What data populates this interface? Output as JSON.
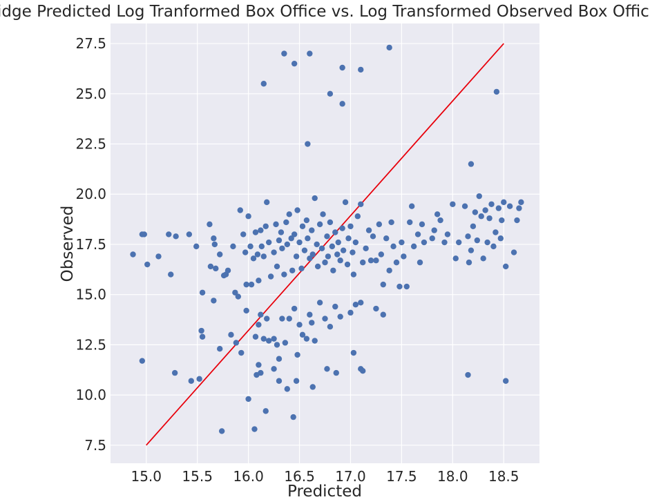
{
  "chart_data": {
    "type": "scatter",
    "title": "Ridge Predicted Log Tranformed Box Office vs. Log Transformed Observed Box Office",
    "xlabel": "Predicted",
    "ylabel": "Observed",
    "xlim": [
      14.65,
      18.85
    ],
    "ylim": [
      6.6,
      28.5
    ],
    "x_ticks": [
      "15.0",
      "15.5",
      "16.0",
      "16.5",
      "17.0",
      "17.5",
      "18.0",
      "18.5"
    ],
    "y_ticks": [
      "7.5",
      "10.0",
      "12.5",
      "15.0",
      "17.5",
      "20.0",
      "22.5",
      "25.0",
      "27.5"
    ],
    "grid": true,
    "legend": "none",
    "colors": {
      "background": "#EAEAF2",
      "grid": "#FFFFFF",
      "points": "#4C72B0",
      "line": "#E8000B"
    },
    "series": [
      {
        "type": "scatter",
        "points": [
          [
            16.35,
            27.0
          ],
          [
            16.6,
            27.0
          ],
          [
            17.38,
            27.3
          ],
          [
            16.45,
            26.5
          ],
          [
            16.92,
            26.3
          ],
          [
            17.1,
            26.2
          ],
          [
            16.15,
            25.5
          ],
          [
            16.8,
            25.0
          ],
          [
            16.92,
            24.5
          ],
          [
            16.58,
            22.5
          ],
          [
            18.43,
            25.1
          ],
          [
            18.18,
            21.5
          ],
          [
            14.87,
            17.0
          ],
          [
            14.96,
            18.0
          ],
          [
            14.98,
            18.0
          ],
          [
            15.01,
            16.5
          ],
          [
            15.12,
            16.9
          ],
          [
            15.22,
            18.0
          ],
          [
            15.24,
            16.0
          ],
          [
            15.29,
            17.9
          ],
          [
            15.42,
            18.0
          ],
          [
            15.49,
            17.4
          ],
          [
            15.55,
            15.1
          ],
          [
            15.62,
            18.5
          ],
          [
            15.63,
            16.4
          ],
          [
            15.66,
            17.8
          ],
          [
            15.67,
            17.5
          ],
          [
            15.68,
            16.3
          ],
          [
            15.66,
            14.7
          ],
          [
            15.72,
            17.0
          ],
          [
            15.76,
            15.95
          ],
          [
            15.78,
            16.0
          ],
          [
            15.8,
            16.2
          ],
          [
            15.85,
            17.4
          ],
          [
            15.87,
            15.1
          ],
          [
            15.9,
            14.9
          ],
          [
            15.92,
            19.2
          ],
          [
            15.95,
            18.0
          ],
          [
            15.97,
            17.1
          ],
          [
            15.98,
            15.5
          ],
          [
            16.0,
            18.9
          ],
          [
            16.02,
            17.4
          ],
          [
            16.03,
            15.5
          ],
          [
            16.05,
            16.8
          ],
          [
            16.07,
            18.1
          ],
          [
            16.09,
            17.0
          ],
          [
            16.1,
            15.7
          ],
          [
            16.12,
            18.2
          ],
          [
            16.13,
            17.4
          ],
          [
            16.15,
            16.9
          ],
          [
            16.17,
            18.4
          ],
          [
            16.18,
            19.6
          ],
          [
            16.2,
            17.6
          ],
          [
            16.22,
            15.9
          ],
          [
            16.25,
            17.1
          ],
          [
            16.27,
            18.5
          ],
          [
            16.28,
            16.4
          ],
          [
            16.3,
            17.7
          ],
          [
            16.32,
            18.1
          ],
          [
            16.33,
            17.3
          ],
          [
            16.35,
            16.0
          ],
          [
            16.37,
            18.6
          ],
          [
            16.38,
            17.5
          ],
          [
            16.4,
            19.0
          ],
          [
            16.42,
            17.8
          ],
          [
            16.43,
            16.2
          ],
          [
            16.45,
            18.0
          ],
          [
            16.47,
            16.9
          ],
          [
            16.48,
            19.2
          ],
          [
            16.5,
            17.6
          ],
          [
            16.52,
            16.3
          ],
          [
            16.53,
            18.4
          ],
          [
            16.55,
            17.2
          ],
          [
            16.57,
            18.7
          ],
          [
            16.58,
            17.8
          ],
          [
            16.6,
            16.8
          ],
          [
            16.62,
            18.2
          ],
          [
            16.63,
            17.0
          ],
          [
            16.65,
            19.8
          ],
          [
            16.67,
            17.5
          ],
          [
            16.68,
            16.4
          ],
          [
            16.7,
            18.5
          ],
          [
            16.72,
            17.3
          ],
          [
            16.73,
            19.0
          ],
          [
            16.75,
            16.6
          ],
          [
            16.77,
            17.9
          ],
          [
            16.78,
            16.9
          ],
          [
            16.8,
            18.6
          ],
          [
            16.82,
            17.4
          ],
          [
            16.83,
            16.2
          ],
          [
            16.85,
            18.1
          ],
          [
            16.87,
            17.0
          ],
          [
            16.88,
            17.6
          ],
          [
            16.9,
            16.7
          ],
          [
            16.92,
            18.3
          ],
          [
            16.93,
            17.2
          ],
          [
            16.95,
            19.6
          ],
          [
            16.97,
            16.5
          ],
          [
            16.98,
            17.8
          ],
          [
            17.0,
            18.4
          ],
          [
            17.02,
            17.1
          ],
          [
            17.03,
            16.0
          ],
          [
            17.05,
            17.6
          ],
          [
            17.07,
            18.9
          ],
          [
            17.1,
            19.5
          ],
          [
            17.12,
            16.6
          ],
          [
            17.15,
            17.3
          ],
          [
            17.18,
            18.2
          ],
          [
            17.2,
            16.7
          ],
          [
            17.22,
            17.9
          ],
          [
            17.25,
            16.7
          ],
          [
            17.28,
            18.5
          ],
          [
            17.3,
            17.0
          ],
          [
            17.32,
            15.5
          ],
          [
            17.35,
            17.8
          ],
          [
            17.38,
            16.2
          ],
          [
            17.4,
            18.6
          ],
          [
            17.42,
            17.4
          ],
          [
            17.45,
            16.6
          ],
          [
            17.48,
            15.4
          ],
          [
            17.5,
            17.6
          ],
          [
            17.52,
            16.9
          ],
          [
            17.55,
            15.4
          ],
          [
            17.58,
            18.6
          ],
          [
            17.6,
            19.4
          ],
          [
            17.62,
            17.4
          ],
          [
            17.66,
            18.0
          ],
          [
            17.68,
            16.6
          ],
          [
            17.7,
            18.5
          ],
          [
            17.72,
            17.6
          ],
          [
            17.8,
            17.8
          ],
          [
            17.82,
            18.2
          ],
          [
            17.85,
            19.0
          ],
          [
            17.88,
            18.7
          ],
          [
            17.92,
            17.6
          ],
          [
            17.95,
            18.0
          ],
          [
            18.0,
            19.5
          ],
          [
            18.03,
            16.8
          ],
          [
            18.06,
            17.6
          ],
          [
            18.12,
            19.4
          ],
          [
            18.15,
            17.9
          ],
          [
            18.16,
            16.6
          ],
          [
            18.18,
            17.2
          ],
          [
            18.2,
            18.4
          ],
          [
            18.22,
            19.1
          ],
          [
            18.24,
            17.7
          ],
          [
            18.26,
            19.9
          ],
          [
            18.28,
            18.9
          ],
          [
            18.3,
            16.8
          ],
          [
            18.32,
            19.2
          ],
          [
            18.34,
            17.6
          ],
          [
            18.36,
            18.8
          ],
          [
            18.38,
            19.5
          ],
          [
            18.4,
            17.4
          ],
          [
            18.42,
            18.1
          ],
          [
            18.45,
            19.3
          ],
          [
            18.47,
            17.8
          ],
          [
            18.48,
            18.7
          ],
          [
            18.5,
            19.6
          ],
          [
            18.52,
            16.4
          ],
          [
            18.56,
            19.4
          ],
          [
            18.6,
            17.1
          ],
          [
            18.63,
            18.7
          ],
          [
            18.65,
            19.3
          ],
          [
            18.67,
            19.6
          ],
          [
            15.54,
            13.2
          ],
          [
            15.55,
            12.9
          ],
          [
            15.72,
            12.3
          ],
          [
            15.83,
            13.0
          ],
          [
            15.88,
            12.6
          ],
          [
            15.93,
            12.1
          ],
          [
            15.98,
            14.2
          ],
          [
            16.07,
            12.9
          ],
          [
            16.1,
            13.5
          ],
          [
            16.12,
            14.0
          ],
          [
            16.15,
            12.8
          ],
          [
            16.18,
            13.8
          ],
          [
            16.2,
            12.7
          ],
          [
            16.25,
            12.8
          ],
          [
            16.28,
            12.5
          ],
          [
            16.3,
            11.8
          ],
          [
            16.33,
            13.8
          ],
          [
            16.36,
            12.6
          ],
          [
            16.4,
            13.8
          ],
          [
            16.45,
            14.3
          ],
          [
            16.48,
            12.0
          ],
          [
            16.5,
            13.5
          ],
          [
            16.53,
            13.0
          ],
          [
            16.57,
            12.8
          ],
          [
            16.6,
            14.0
          ],
          [
            16.62,
            13.6
          ],
          [
            16.65,
            12.7
          ],
          [
            16.7,
            14.6
          ],
          [
            16.75,
            13.8
          ],
          [
            16.8,
            13.4
          ],
          [
            16.85,
            14.4
          ],
          [
            16.9,
            13.9
          ],
          [
            17.0,
            14.1
          ],
          [
            17.05,
            14.5
          ],
          [
            17.1,
            14.6
          ],
          [
            17.25,
            14.3
          ],
          [
            17.32,
            14.0
          ],
          [
            14.96,
            11.7
          ],
          [
            15.28,
            11.1
          ],
          [
            15.44,
            10.7
          ],
          [
            15.52,
            10.8
          ],
          [
            16.08,
            11.0
          ],
          [
            16.1,
            11.5
          ],
          [
            16.12,
            11.1
          ],
          [
            16.25,
            11.3
          ],
          [
            16.3,
            10.7
          ],
          [
            16.38,
            10.3
          ],
          [
            16.47,
            10.7
          ],
          [
            16.63,
            10.4
          ],
          [
            16.77,
            11.3
          ],
          [
            16.86,
            11.1
          ],
          [
            17.03,
            12.1
          ],
          [
            17.1,
            11.3
          ],
          [
            17.12,
            11.2
          ],
          [
            18.15,
            11.0
          ],
          [
            18.52,
            10.7
          ],
          [
            15.74,
            8.2
          ],
          [
            16.0,
            9.8
          ],
          [
            16.06,
            8.3
          ],
          [
            16.17,
            9.2
          ],
          [
            16.44,
            8.9
          ]
        ]
      },
      {
        "type": "line",
        "points": [
          [
            15.0,
            7.5
          ],
          [
            18.5,
            27.5
          ]
        ]
      }
    ]
  }
}
